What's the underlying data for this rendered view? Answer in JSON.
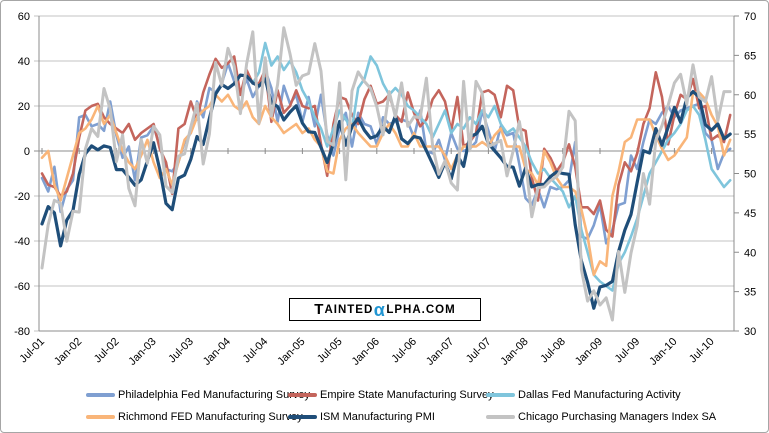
{
  "watermark": {
    "part1": "T",
    "part2": "AINTED",
    "alpha": "α",
    "part3": "LPHA.COM",
    "alpha_color": "#2196d3",
    "text_color": "#000000"
  },
  "colors": {
    "background": "#ffffff",
    "outer_border": "#a6a6a6",
    "gridline": "#c3c3c3",
    "axis_line": "#8c8c8c",
    "tick": "#8c8c8c"
  },
  "chart_data": {
    "type": "line",
    "title": "",
    "x_start": "Jul-2001",
    "x_interval": "monthly",
    "x_tick_labels": [
      "Jul-01",
      "Jan-02",
      "Jul-02",
      "Jan-03",
      "Jul-03",
      "Jan-04",
      "Jul-04",
      "Jan-05",
      "Jul-05",
      "Jan-06",
      "Jul-06",
      "Jan-07",
      "Jul-07",
      "Jan-08",
      "Jul-08",
      "Jan-09",
      "Jul-09",
      "Jan-10",
      "Jul-10"
    ],
    "left_axis": {
      "min": -80,
      "max": 60,
      "step": 20,
      "tick_labels": [
        "60",
        "40",
        "20",
        "0",
        "-20",
        "-40",
        "-60",
        "-80"
      ]
    },
    "right_axis": {
      "min": 30,
      "max": 70,
      "step": 5,
      "tick_labels": [
        "70",
        "65",
        "60",
        "55",
        "50",
        "45",
        "40",
        "35",
        "30"
      ]
    },
    "grid": true,
    "legend_position": "bottom",
    "series": [
      {
        "name": "Philadelphia Fed Manufacturing Survey",
        "color": "#7f9fd1",
        "axis": "left",
        "width": 2.6,
        "values": [
          -12,
          -18,
          -7,
          -27,
          -17,
          -13,
          15,
          16,
          11,
          12,
          9,
          22,
          7,
          -3,
          2,
          -13,
          6,
          7,
          11,
          2,
          -8,
          -9,
          -5,
          4,
          8,
          22,
          15,
          28,
          26,
          30,
          39,
          31,
          25,
          32,
          24,
          29,
          36,
          28,
          13,
          29,
          21,
          25,
          13,
          24,
          11,
          25,
          7,
          -2,
          10,
          17,
          2,
          17,
          12,
          11,
          3,
          15,
          12,
          13,
          14,
          13,
          6,
          18,
          0,
          -1,
          5,
          -4,
          8,
          1,
          0,
          1,
          4,
          18,
          9,
          0,
          11,
          7,
          8,
          -6,
          -21,
          -24,
          -17,
          -25,
          -16,
          -17,
          -16,
          -13,
          4,
          -38,
          -39,
          -33,
          -24,
          -41,
          -35,
          -24,
          -23,
          -2,
          -8,
          4,
          14,
          12,
          17,
          20,
          15,
          18,
          19,
          20,
          21,
          8,
          5,
          -8,
          -1,
          1
        ]
      },
      {
        "name": "Empire State Manufacturing Survey",
        "color": "#c4655c",
        "axis": "left",
        "width": 2.6,
        "values": [
          -10,
          -15,
          -16,
          -20,
          -18,
          -10,
          6,
          18,
          20,
          21,
          15,
          12,
          10,
          8,
          12,
          5,
          8,
          10,
          12,
          1,
          -5,
          -19,
          10,
          12,
          22,
          14,
          26,
          34,
          41,
          37,
          39,
          42,
          25,
          36,
          30,
          30,
          36,
          13,
          27,
          17,
          20,
          27,
          20,
          19,
          20,
          3,
          -11,
          12,
          24,
          23,
          16,
          12,
          23,
          29,
          21,
          22,
          25,
          16,
          13,
          26,
          17,
          11,
          14,
          23,
          27,
          22,
          9,
          24,
          2,
          4,
          8,
          26,
          27,
          25,
          15,
          29,
          27,
          10,
          9,
          -12,
          -22,
          1,
          -3,
          -9,
          -5,
          3,
          -7,
          -25,
          -25,
          -28,
          -22,
          -35,
          -38,
          -15,
          -5,
          -9,
          -1,
          12,
          19,
          35,
          24,
          3,
          16,
          25,
          23,
          32,
          19,
          20,
          5,
          7,
          4,
          16
        ]
      },
      {
        "name": "Dallas Fed Manufacturing Activity",
        "color": "#7fc5dc",
        "axis": "left",
        "width": 2.6,
        "values": [
          null,
          null,
          null,
          null,
          null,
          null,
          null,
          null,
          null,
          null,
          null,
          null,
          null,
          null,
          null,
          null,
          null,
          null,
          null,
          null,
          null,
          null,
          null,
          null,
          null,
          null,
          null,
          null,
          null,
          null,
          null,
          null,
          null,
          null,
          30,
          35,
          48,
          38,
          42,
          36,
          40,
          35,
          27,
          22,
          15,
          10,
          2,
          10,
          18,
          14,
          10,
          28,
          32,
          42,
          38,
          30,
          25,
          28,
          25,
          20,
          18,
          15,
          12,
          6,
          12,
          18,
          8,
          12,
          10,
          15,
          12,
          18,
          15,
          20,
          12,
          8,
          10,
          6,
          2,
          -5,
          -10,
          -8,
          -12,
          -15,
          -18,
          -25,
          -20,
          -35,
          -45,
          -55,
          -58,
          -60,
          -62,
          -50,
          -45,
          -38,
          -30,
          -20,
          -10,
          -5,
          0,
          5,
          8,
          12,
          18,
          20,
          16,
          5,
          -8,
          -12,
          -16,
          -13
        ]
      },
      {
        "name": "Richmond FED Manufacturing Survey",
        "color": "#f9b579",
        "axis": "left",
        "width": 2.6,
        "values": [
          -3,
          0,
          -15,
          -22,
          -12,
          -2,
          8,
          10,
          14,
          20,
          12,
          16,
          8,
          0,
          -5,
          -8,
          -2,
          5,
          -5,
          -12,
          -8,
          -15,
          -5,
          5,
          8,
          15,
          18,
          20,
          25,
          22,
          25,
          20,
          18,
          22,
          15,
          12,
          20,
          15,
          12,
          8,
          10,
          12,
          8,
          10,
          5,
          2,
          -9,
          -10,
          5,
          10,
          12,
          8,
          5,
          2,
          2,
          8,
          12,
          8,
          2,
          2,
          8,
          2,
          2,
          2,
          2,
          -2,
          -8,
          -2,
          2,
          2,
          2,
          4,
          2,
          7,
          10,
          2,
          2,
          2,
          -8,
          -10,
          -15,
          0,
          -5,
          -12,
          -16,
          -16,
          -18,
          -26,
          -38,
          -55,
          -49,
          -51,
          -20,
          -9,
          4,
          6,
          14,
          14,
          14,
          7,
          1,
          -4,
          -2,
          2,
          6,
          26,
          26,
          23,
          16,
          11,
          -2,
          5
        ]
      },
      {
        "name": "ISM Manufacturing PMI",
        "color": "#1f4e79",
        "axis": "right",
        "width": 3.2,
        "values": [
          43.6,
          45.8,
          45.0,
          40.8,
          44.1,
          45.3,
          49.9,
          52.5,
          53.5,
          53.0,
          53.5,
          53.3,
          50.5,
          50.5,
          49.5,
          48.5,
          49.2,
          51.6,
          53.9,
          50.5,
          46.2,
          45.4,
          49.4,
          49.8,
          51.8,
          54.7,
          53.7,
          57.0,
          60.1,
          61.3,
          60.8,
          61.4,
          62.5,
          62.4,
          61.5,
          61.1,
          62.0,
          59.0,
          58.5,
          56.8,
          57.8,
          58.6,
          56.4,
          55.3,
          55.2,
          53.3,
          51.4,
          53.8,
          56.6,
          53.6,
          56.0,
          57.0,
          55.5,
          54.5,
          54.8,
          56.0,
          55.2,
          57.3,
          54.4,
          53.8,
          54.7,
          54.5,
          52.9,
          51.2,
          49.5,
          51.4,
          49.3,
          52.3,
          50.9,
          54.7,
          55.0,
          56.0,
          53.8,
          52.9,
          52.0,
          50.9,
          50.8,
          48.4,
          50.7,
          48.3,
          48.6,
          48.6,
          49.6,
          50.2,
          50.0,
          49.9,
          43.5,
          38.9,
          36.2,
          32.9,
          35.6,
          35.8,
          36.3,
          40.1,
          42.8,
          44.8,
          48.9,
          52.9,
          52.6,
          55.7,
          53.6,
          55.9,
          58.4,
          56.5,
          59.6,
          60.4,
          59.7,
          56.2,
          55.5,
          56.3,
          54.4,
          55.0
        ]
      },
      {
        "name": "Chicago Purchasing Managers Index SA",
        "color": "#c3c3c3",
        "axis": "right",
        "width": 3.0,
        "values": [
          38.0,
          43.5,
          46.6,
          46.2,
          41.4,
          45.2,
          45.1,
          53.1,
          55.7,
          54.7,
          60.8,
          58.2,
          51.5,
          54.9,
          48.1,
          45.9,
          54.3,
          51.3,
          56.0,
          54.9,
          48.4,
          47.6,
          52.2,
          52.5,
          55.9,
          58.9,
          51.2,
          55.0,
          64.1,
          61.2,
          65.9,
          63.6,
          57.6,
          63.9,
          68.0,
          56.4,
          64.7,
          57.3,
          61.3,
          68.5,
          65.2,
          61.2,
          62.4,
          62.7,
          66.5,
          63.0,
          54.1,
          53.6,
          61.5,
          49.2,
          60.5,
          62.9,
          61.7,
          60.8,
          58.5,
          54.9,
          60.4,
          57.2,
          61.5,
          56.0,
          57.2,
          57.1,
          62.1,
          53.5,
          49.9,
          51.6,
          48.8,
          47.9,
          61.7,
          52.9,
          61.7,
          60.2,
          53.4,
          53.8,
          54.2,
          49.7,
          52.9,
          56.6,
          51.5,
          44.5,
          48.2,
          48.3,
          49.1,
          49.6,
          50.8,
          57.9,
          56.7,
          37.8,
          33.8,
          35.1,
          33.3,
          34.2,
          31.4,
          40.1,
          34.9,
          39.9,
          43.4,
          50.0,
          46.1,
          54.2,
          56.1,
          58.7,
          61.5,
          62.6,
          58.8,
          63.8,
          59.7,
          59.1,
          62.3,
          56.7,
          60.4,
          60.4
        ]
      }
    ]
  }
}
